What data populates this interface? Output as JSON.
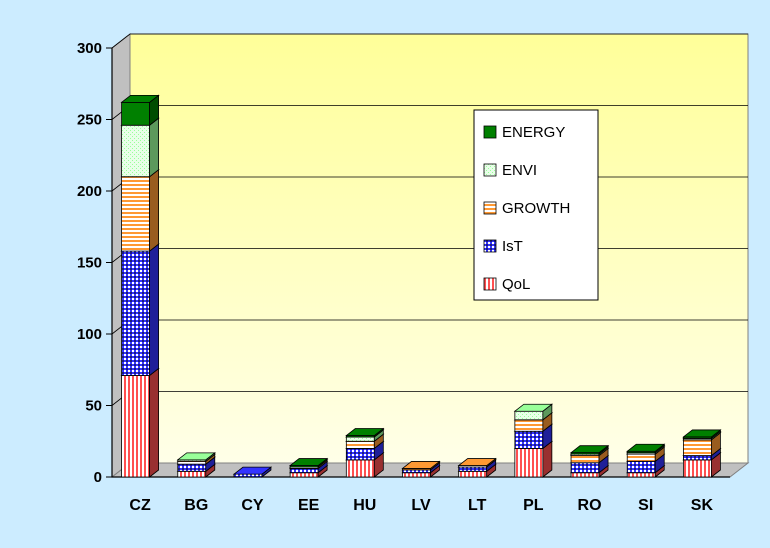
{
  "chart_data": {
    "type": "bar",
    "stacked": true,
    "three_d": true,
    "categories": [
      "CZ",
      "BG",
      "CY",
      "EE",
      "HU",
      "LV",
      "LT",
      "PL",
      "RO",
      "SI",
      "SK"
    ],
    "series": [
      {
        "name": "QoL",
        "values": [
          71,
          4,
          0,
          3,
          12,
          3,
          4,
          20,
          3,
          3,
          12
        ],
        "color": "#FF5050",
        "pattern": "vertical-stripes"
      },
      {
        "name": "IsT",
        "values": [
          87,
          5,
          2,
          3,
          8,
          2,
          3,
          12,
          7,
          8,
          3
        ],
        "color": "#3333FF",
        "pattern": "checker"
      },
      {
        "name": "GROWTH",
        "values": [
          52,
          2,
          0,
          1,
          5,
          1,
          1,
          8,
          5,
          5,
          11
        ],
        "color": "#FF9933",
        "pattern": "horizontal-stripes"
      },
      {
        "name": "ENVI",
        "values": [
          36,
          1,
          0,
          0,
          3,
          0,
          0,
          6,
          1,
          1,
          1
        ],
        "color": "#99FF99",
        "pattern": "dots"
      },
      {
        "name": "ENERGY",
        "values": [
          16,
          0,
          0,
          1,
          1,
          0,
          0,
          0,
          1,
          1,
          1
        ],
        "color": "#008000",
        "pattern": "solid"
      }
    ],
    "ylim": [
      0,
      300
    ],
    "yticks": [
      0,
      50,
      100,
      150,
      200,
      250,
      300
    ],
    "grid": true,
    "legend_position": "inside-right",
    "plot_color_top": "#FFFF99",
    "plot_color_bottom": "#FFFFE8"
  }
}
